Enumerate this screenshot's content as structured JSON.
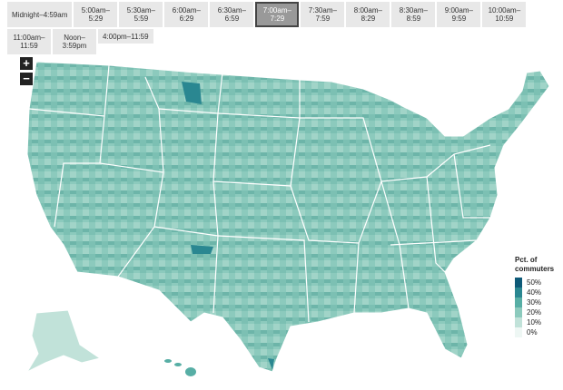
{
  "time_buttons": [
    "Midnight–4:59am",
    "5:00am–5:29",
    "5:30am–5:59",
    "6:00am–6:29",
    "6:30am–6:59",
    "7:00am–7:29",
    "7:30am–7:59",
    "8:00am–8:29",
    "8:30am–8:59",
    "9:00am–9:59",
    "10:00am–10:59",
    "11:00am–11:59",
    "Noon–3:59pm",
    "4:00pm–11:59"
  ],
  "selected": 5,
  "zoom": {
    "in": "+",
    "out": "−"
  },
  "legend": {
    "title": "Pct. of commuters",
    "items": [
      {
        "label": "50%",
        "color": "#0e5a78"
      },
      {
        "label": "40%",
        "color": "#2a8791"
      },
      {
        "label": "30%",
        "color": "#57aea5"
      },
      {
        "label": "20%",
        "color": "#8ccabd"
      },
      {
        "label": "10%",
        "color": "#c1e2d9"
      },
      {
        "label": "0%",
        "color": "#eef7f4"
      }
    ]
  }
}
